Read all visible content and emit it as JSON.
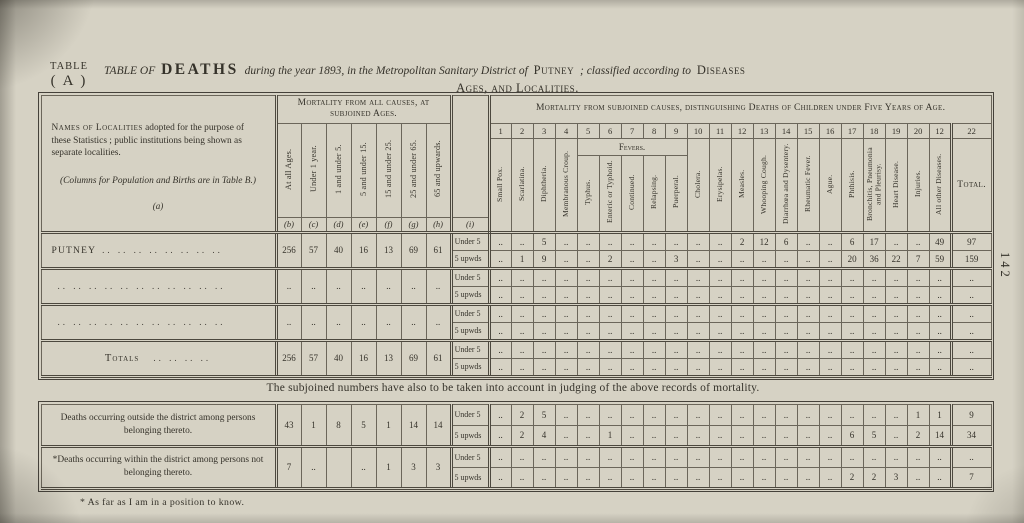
{
  "colors": {
    "paper": "#d6d2c4",
    "ink": "#35322a",
    "rule": "#4c483e"
  },
  "page_number": "142",
  "corner_label": {
    "line1": "TABLE",
    "line2": "( A )"
  },
  "title": {
    "prefix": "TABLE OF",
    "deaths": "DEATHS",
    "mid1": "during the year 1893, in the Metropolitan Sanitary District of",
    "place": "Putney",
    "mid2": "; classified according to",
    "diseases": "Diseases",
    "line2": "Ages, and Localities."
  },
  "main_table": {
    "name_header": {
      "lead": "Names of Localities",
      "rest": " adopted for the purpose of these Statistics ; public institutions being shown as separate localities.",
      "note": "(Columns for Population and Births are in Table B.)",
      "letter": "(a)"
    },
    "age_section": {
      "title": "Mortality from all causes, at subjoined Ages.",
      "columns": [
        "At all Ages.",
        "Under 1 year.",
        "1 and under 5.",
        "5 and under 15.",
        "15 and under 25.",
        "25 and under 65.",
        "65 and upwards."
      ],
      "letters": [
        "(b)",
        "(c)",
        "(d)",
        "(e)",
        "(f)",
        "(g)",
        "(h)"
      ]
    },
    "icol": {
      "letter": "(i)",
      "under5_label": "Under 5",
      "upwds_label": "5 upwds"
    },
    "cause_section": {
      "title": "Mortality from subjoined causes, distinguishing Deaths of Children under Five Years of Age.",
      "numbers": [
        "1",
        "2",
        "3",
        "4",
        "5",
        "6",
        "7",
        "8",
        "9",
        "10",
        "11",
        "12",
        "13",
        "14",
        "15",
        "16",
        "17",
        "18",
        "19",
        "20",
        "12",
        "22"
      ],
      "fevers_label": "Fevers.",
      "labels_pre": [
        "Small Pox.",
        "Scarlatina.",
        "Diphtheria.",
        "Membranous Croup."
      ],
      "fever_labels": [
        "Typhus.",
        "Enteric or Typhoid.",
        "Continued.",
        "Relapsing.",
        "Puerperal."
      ],
      "labels_post": [
        "Cholera.",
        "Erysipelas.",
        "Measles.",
        "Whooping Cough.",
        "Diarrhœa and Dysentery.",
        "Rheumatic Fever.",
        "Ague.",
        "Phthisis.",
        "Bronchitis, Pneumonia and Pleurisy.",
        "Heart Disease.",
        "Injuries.",
        "All other Diseases."
      ],
      "total_label": "Total."
    },
    "rows": [
      {
        "name": "PUTNEY",
        "dots": ".. .. .. .. .. .. .. ..",
        "ages": [
          "256",
          "57",
          "40",
          "16",
          "13",
          "69",
          "61"
        ],
        "under5": [
          "..",
          "..",
          "5",
          "..",
          "..",
          "..",
          "..",
          "..",
          "..",
          "..",
          "..",
          "2",
          "12",
          "6",
          "..",
          "..",
          "6",
          "17",
          "..",
          "..",
          "49",
          "97"
        ],
        "upwards5": [
          "..",
          "1",
          "9",
          "..",
          "..",
          "2",
          "..",
          "..",
          "3",
          "..",
          "..",
          "..",
          "..",
          "..",
          "..",
          "..",
          "20",
          "36",
          "22",
          "7",
          "59",
          "159"
        ]
      },
      {
        "name": "",
        "dots": ".. .. .. .. .. .. .. .. .. .. ..",
        "ages": [
          "..",
          "..",
          "..",
          "..",
          "..",
          "..",
          ".."
        ],
        "under5": [
          "..",
          "..",
          "..",
          "..",
          "..",
          "..",
          "..",
          "..",
          "..",
          "..",
          "..",
          "..",
          "..",
          "..",
          "..",
          "..",
          "..",
          "..",
          "..",
          "..",
          "..",
          ".."
        ],
        "upwards5": [
          "..",
          "..",
          "..",
          "..",
          "..",
          "..",
          "..",
          "..",
          "..",
          "..",
          "..",
          "..",
          "..",
          "..",
          "..",
          "..",
          "..",
          "..",
          "..",
          "..",
          "..",
          ".."
        ]
      },
      {
        "name": "",
        "dots": ".. .. .. .. .. .. .. .. .. .. ..",
        "ages": [
          "..",
          "..",
          "..",
          "..",
          "..",
          "..",
          ".."
        ],
        "under5": [
          "..",
          "..",
          "..",
          "..",
          "..",
          "..",
          "..",
          "..",
          "..",
          "..",
          "..",
          "..",
          "..",
          "..",
          "..",
          "..",
          "..",
          "..",
          "..",
          "..",
          "..",
          ".."
        ],
        "upwards5": [
          "..",
          "..",
          "..",
          "..",
          "..",
          "..",
          "..",
          "..",
          "..",
          "..",
          "..",
          "..",
          "..",
          "..",
          "..",
          "..",
          "..",
          "..",
          "..",
          "..",
          "..",
          ".."
        ]
      },
      {
        "name": "Totals",
        "dots": ".. .. .. ..",
        "is_totals": true,
        "ages": [
          "256",
          "57",
          "40",
          "16",
          "13",
          "69",
          "61"
        ],
        "under5": [
          "..",
          "..",
          "..",
          "..",
          "..",
          "..",
          "..",
          "..",
          "..",
          "..",
          "..",
          "..",
          "..",
          "..",
          "..",
          "..",
          "..",
          "..",
          "..",
          "..",
          "..",
          ".."
        ],
        "upwards5": [
          "..",
          "..",
          "..",
          "..",
          "..",
          "..",
          "..",
          "..",
          "..",
          "..",
          "..",
          "..",
          "..",
          "..",
          "..",
          "..",
          "..",
          "..",
          "..",
          "..",
          "..",
          ".."
        ]
      }
    ]
  },
  "note": "The subjoined numbers have also to be taken into account in judging of the above records of mortality.",
  "bottom_table": {
    "rows": [
      {
        "name": "Deaths occurring outside the district among persons belonging thereto.",
        "ages": [
          "43",
          "1",
          "8",
          "5",
          "1",
          "14",
          "14"
        ],
        "under5": [
          "..",
          "2",
          "5",
          "..",
          "..",
          "..",
          "..",
          "..",
          "..",
          "..",
          "..",
          "..",
          "..",
          "..",
          "..",
          "..",
          "..",
          "..",
          "..",
          "1",
          "1",
          "9"
        ],
        "upwards5": [
          "..",
          "2",
          "4",
          "..",
          "..",
          "1",
          "..",
          "..",
          "..",
          "..",
          "..",
          "..",
          "..",
          "..",
          "..",
          "..",
          "6",
          "5",
          "..",
          "2",
          "14",
          "34"
        ]
      },
      {
        "name": "*Deaths occurring within the district among persons not belonging thereto.",
        "ages": [
          "7",
          "..",
          "",
          "..",
          "1",
          "3",
          "3"
        ],
        "under5": [
          "..",
          "..",
          "..",
          "..",
          "..",
          "..",
          "..",
          "..",
          "..",
          "..",
          "..",
          "..",
          "..",
          "..",
          "..",
          "..",
          "..",
          "..",
          "..",
          "..",
          "..",
          ".."
        ],
        "upwards5": [
          "..",
          "..",
          "..",
          "..",
          "..",
          "..",
          "..",
          "..",
          "..",
          "..",
          "..",
          "..",
          "..",
          "..",
          "..",
          "..",
          "2",
          "2",
          "3",
          "..",
          "..",
          "7"
        ]
      }
    ]
  },
  "footnote": "* As far as I am in a position to know."
}
